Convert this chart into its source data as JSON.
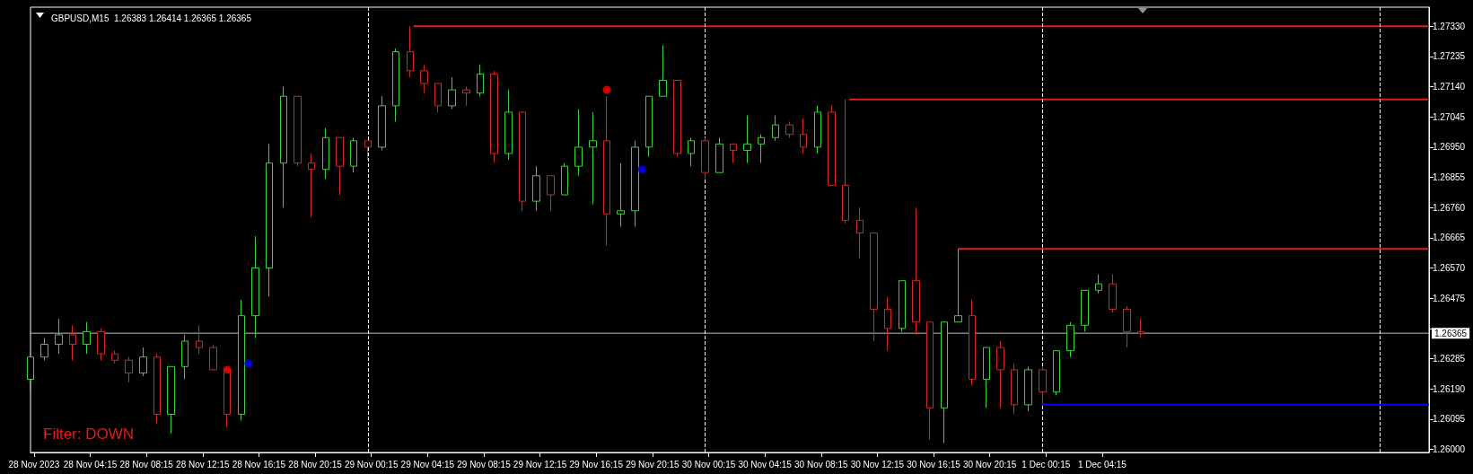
{
  "chart_data": {
    "type": "candlestick",
    "title": "GBPUSD,M15  1.26383 1.26414 1.26365 1.26365",
    "x": [
      "2023-11-28T00:00",
      "2023-11-28T01:00",
      "2023-11-28T02:00",
      "2023-11-28T03:00",
      "2023-11-28T04:00",
      "2023-11-28T05:00",
      "2023-11-28T06:00",
      "2023-11-28T07:00",
      "2023-11-28T08:00",
      "2023-11-28T09:00",
      "2023-11-28T10:00",
      "2023-11-28T11:00",
      "2023-11-28T12:00",
      "2023-11-28T13:00",
      "2023-11-28T14:00",
      "2023-11-28T15:00",
      "2023-11-28T16:00",
      "2023-11-28T17:00",
      "2023-11-28T18:00",
      "2023-11-28T19:00",
      "2023-11-28T20:00",
      "2023-11-28T21:00",
      "2023-11-28T22:00",
      "2023-11-28T23:00",
      "2023-11-29T00:00",
      "2023-11-29T01:00",
      "2023-11-29T02:00",
      "2023-11-29T03:00",
      "2023-11-29T04:00",
      "2023-11-29T05:00",
      "2023-11-29T06:00",
      "2023-11-29T07:00",
      "2023-11-29T08:00",
      "2023-11-29T09:00",
      "2023-11-29T10:00",
      "2023-11-29T11:00",
      "2023-11-29T12:00",
      "2023-11-29T13:00",
      "2023-11-29T14:00",
      "2023-11-29T15:00",
      "2023-11-29T16:00",
      "2023-11-29T17:00",
      "2023-11-29T18:00",
      "2023-11-29T19:00",
      "2023-11-29T20:00",
      "2023-11-29T21:00",
      "2023-11-29T22:00",
      "2023-11-29T23:00",
      "2023-11-30T00:00",
      "2023-11-30T01:00",
      "2023-11-30T02:00",
      "2023-11-30T03:00",
      "2023-11-30T04:00",
      "2023-11-30T05:00",
      "2023-11-30T06:00",
      "2023-11-30T07:00",
      "2023-11-30T08:00",
      "2023-11-30T09:00",
      "2023-11-30T10:00",
      "2023-11-30T11:00",
      "2023-11-30T12:00",
      "2023-11-30T13:00",
      "2023-11-30T14:00",
      "2023-11-30T15:00",
      "2023-11-30T16:00",
      "2023-11-30T17:00",
      "2023-11-30T18:00",
      "2023-11-30T19:00",
      "2023-11-30T20:00",
      "2023-11-30T21:00",
      "2023-11-30T22:00",
      "2023-11-30T23:00",
      "2023-12-01T00:00",
      "2023-12-01T01:00",
      "2023-12-01T02:00",
      "2023-12-01T03:00",
      "2023-12-01T04:00",
      "2023-12-01T05:00",
      "2023-12-01T06:00",
      "2023-12-01T07:00"
    ],
    "ohlc": [
      [
        1.2622,
        1.263,
        1.2618,
        1.2629
      ],
      [
        1.2629,
        1.2635,
        1.2628,
        1.2633
      ],
      [
        1.2633,
        1.2641,
        1.263,
        1.2636
      ],
      [
        1.2636,
        1.2639,
        1.2628,
        1.2633
      ],
      [
        1.2633,
        1.264,
        1.263,
        1.2637
      ],
      [
        1.2637,
        1.2638,
        1.2628,
        1.263
      ],
      [
        1.263,
        1.2631,
        1.2627,
        1.2628
      ],
      [
        1.2628,
        1.2629,
        1.2621,
        1.2624
      ],
      [
        1.2624,
        1.2632,
        1.2623,
        1.2629
      ],
      [
        1.2629,
        1.263,
        1.2608,
        1.2611
      ],
      [
        1.2611,
        1.2626,
        1.2605,
        1.2626
      ],
      [
        1.2626,
        1.2636,
        1.2622,
        1.2634
      ],
      [
        1.2634,
        1.2639,
        1.263,
        1.2632
      ],
      [
        1.2632,
        1.2633,
        1.2625,
        1.2625
      ],
      [
        1.2625,
        1.2626,
        1.2607,
        1.2611
      ],
      [
        1.2611,
        1.2647,
        1.2609,
        1.2642
      ],
      [
        1.2642,
        1.2667,
        1.2635,
        1.2657
      ],
      [
        1.2657,
        1.2696,
        1.2648,
        1.269
      ],
      [
        1.269,
        1.2714,
        1.2676,
        1.2711
      ],
      [
        1.2711,
        1.2711,
        1.2689,
        1.269
      ],
      [
        1.269,
        1.2693,
        1.2673,
        1.2688
      ],
      [
        1.2688,
        1.2701,
        1.2685,
        1.2698
      ],
      [
        1.2698,
        1.2698,
        1.268,
        1.2689
      ],
      [
        1.2689,
        1.2698,
        1.2687,
        1.2697
      ],
      [
        1.2697,
        1.2697,
        1.2691,
        1.2695
      ],
      [
        1.2695,
        1.2711,
        1.2694,
        1.2708
      ],
      [
        1.2708,
        1.2726,
        1.2703,
        1.2725
      ],
      [
        1.2725,
        1.2733,
        1.2717,
        1.2719
      ],
      [
        1.2719,
        1.2721,
        1.2712,
        1.2715
      ],
      [
        1.2715,
        1.2715,
        1.2706,
        1.2708
      ],
      [
        1.2708,
        1.2717,
        1.2707,
        1.2713
      ],
      [
        1.2713,
        1.2714,
        1.2708,
        1.2712
      ],
      [
        1.2712,
        1.2721,
        1.2711,
        1.2718
      ],
      [
        1.2718,
        1.2719,
        1.269,
        1.2693
      ],
      [
        1.2693,
        1.2713,
        1.2691,
        1.2706
      ],
      [
        1.2706,
        1.2706,
        1.2675,
        1.2678
      ],
      [
        1.2678,
        1.2689,
        1.2675,
        1.2686
      ],
      [
        1.2686,
        1.2686,
        1.2675,
        1.268
      ],
      [
        1.268,
        1.269,
        1.268,
        1.2689
      ],
      [
        1.2689,
        1.2707,
        1.2686,
        1.2695
      ],
      [
        1.2695,
        1.2706,
        1.2677,
        1.2697
      ],
      [
        1.2697,
        1.2711,
        1.2664,
        1.2674
      ],
      [
        1.2674,
        1.269,
        1.267,
        1.2675
      ],
      [
        1.2675,
        1.2697,
        1.267,
        1.2695
      ],
      [
        1.2695,
        1.2711,
        1.2692,
        1.2711
      ],
      [
        1.2711,
        1.2727,
        1.2711,
        1.2716
      ],
      [
        1.2716,
        1.2716,
        1.2692,
        1.2693
      ],
      [
        1.2693,
        1.2698,
        1.2689,
        1.2697
      ],
      [
        1.2697,
        1.2698,
        1.2685,
        1.2687
      ],
      [
        1.2687,
        1.2698,
        1.2687,
        1.2696
      ],
      [
        1.2696,
        1.2696,
        1.269,
        1.2694
      ],
      [
        1.2694,
        1.2705,
        1.269,
        1.2696
      ],
      [
        1.2696,
        1.2699,
        1.269,
        1.2698
      ],
      [
        1.2698,
        1.2705,
        1.2697,
        1.2702
      ],
      [
        1.2702,
        1.2703,
        1.2698,
        1.2699
      ],
      [
        1.2699,
        1.2704,
        1.2693,
        1.2695
      ],
      [
        1.2695,
        1.2708,
        1.2693,
        1.2706
      ],
      [
        1.2706,
        1.2708,
        1.2683,
        1.2683
      ],
      [
        1.2683,
        1.271,
        1.2671,
        1.2672
      ],
      [
        1.2672,
        1.2676,
        1.266,
        1.2668
      ],
      [
        1.2668,
        1.2668,
        1.2634,
        1.2644
      ],
      [
        1.2644,
        1.2648,
        1.2631,
        1.2638
      ],
      [
        1.2638,
        1.2653,
        1.2637,
        1.2653
      ],
      [
        1.2653,
        1.2676,
        1.2636,
        1.264
      ],
      [
        1.264,
        1.264,
        1.2603,
        1.2613
      ],
      [
        1.2613,
        1.264,
        1.2602,
        1.264
      ],
      [
        1.264,
        1.2663,
        1.264,
        1.2642
      ],
      [
        1.2642,
        1.2647,
        1.262,
        1.2622
      ],
      [
        1.2622,
        1.2632,
        1.2613,
        1.2632
      ],
      [
        1.2632,
        1.2634,
        1.2613,
        1.2625
      ],
      [
        1.2625,
        1.2627,
        1.2611,
        1.2614
      ],
      [
        1.2614,
        1.2626,
        1.2612,
        1.2625
      ],
      [
        1.2625,
        1.2626,
        1.2614,
        1.2618
      ],
      [
        1.2618,
        1.2631,
        1.2617,
        1.2631
      ],
      [
        1.2631,
        1.264,
        1.2629,
        1.2639
      ],
      [
        1.2639,
        1.265,
        1.2637,
        1.265
      ],
      [
        1.265,
        1.2655,
        1.2649,
        1.2652
      ],
      [
        1.2652,
        1.2655,
        1.2643,
        1.2644
      ],
      [
        1.2644,
        1.2645,
        1.2632,
        1.2637
      ],
      [
        1.2637,
        1.2641,
        1.2635,
        1.26365
      ]
    ],
    "series": [
      {
        "type": "line",
        "color": "#e02020",
        "marker": "none",
        "x": [
          "2023-11-29T03:15",
          "2023-12-02T03:30"
        ],
        "values": [
          1.2733,
          1.2733
        ]
      },
      {
        "type": "line",
        "color": "#e02020",
        "marker": "none",
        "x": [
          "2023-11-30T10:15",
          "2023-12-02T03:30"
        ],
        "values": [
          1.271,
          1.271
        ]
      },
      {
        "type": "line",
        "color": "#e02020",
        "marker": "none",
        "x": [
          "2023-11-30T18:00",
          "2023-12-02T03:30"
        ],
        "values": [
          1.2663,
          1.2663
        ]
      },
      {
        "type": "line",
        "color": "#0000ff",
        "marker": "none",
        "x": [
          "2023-12-01T00:00",
          "2023-12-02T03:30"
        ],
        "values": [
          1.2614,
          1.2614
        ]
      },
      {
        "type": "scatter",
        "color": "#ff0000",
        "marker": "circle",
        "x": [
          "2023-11-28T14:00",
          "2023-11-29T17:00"
        ],
        "values": [
          1.2625,
          1.2713
        ]
      },
      {
        "type": "scatter",
        "color": "#0000ff",
        "marker": "circle",
        "x": [
          "2023-11-28T15:30",
          "2023-11-29T19:30"
        ],
        "values": [
          1.2627,
          1.2688
        ]
      }
    ],
    "xlim": [
      "2023-11-28T00:00",
      "2023-12-02T03:30"
    ],
    "xticks": [
      {
        "value": "2023-11-28T00:15",
        "label": "28 Nov 2023"
      },
      {
        "value": "2023-11-28T04:15",
        "label": "28 Nov 04:15"
      },
      {
        "value": "2023-11-28T08:15",
        "label": "28 Nov 08:15"
      },
      {
        "value": "2023-11-28T12:15",
        "label": "28 Nov 12:15"
      },
      {
        "value": "2023-11-28T16:15",
        "label": "28 Nov 16:15"
      },
      {
        "value": "2023-11-28T20:15",
        "label": "28 Nov 20:15"
      },
      {
        "value": "2023-11-29T00:15",
        "label": "29 Nov 00:15"
      },
      {
        "value": "2023-11-29T04:15",
        "label": "29 Nov 04:15"
      },
      {
        "value": "2023-11-29T08:15",
        "label": "29 Nov 08:15"
      },
      {
        "value": "2023-11-29T12:15",
        "label": "29 Nov 12:15"
      },
      {
        "value": "2023-11-29T16:15",
        "label": "29 Nov 16:15"
      },
      {
        "value": "2023-11-29T20:15",
        "label": "29 Nov 20:15"
      },
      {
        "value": "2023-11-30T00:15",
        "label": "30 Nov 00:15"
      },
      {
        "value": "2023-11-30T04:15",
        "label": "30 Nov 04:15"
      },
      {
        "value": "2023-11-30T08:15",
        "label": "30 Nov 08:15"
      },
      {
        "value": "2023-11-30T12:15",
        "label": "30 Nov 12:15"
      },
      {
        "value": "2023-11-30T16:15",
        "label": "30 Nov 16:15"
      },
      {
        "value": "2023-11-30T20:15",
        "label": "30 Nov 20:15"
      },
      {
        "value": "2023-12-01T00:15",
        "label": "1 Dec 00:15"
      },
      {
        "value": "2023-12-01T04:15",
        "label": "1 Dec 04:15"
      }
    ],
    "ylim": [
      1.2599,
      1.2739
    ],
    "yticks": [
      {
        "value": 1.26,
        "label": "1.26000"
      },
      1.26095,
      {
        "value": 1.2619,
        "label": "1.26190"
      },
      1.26285,
      {
        "value": 1.2638,
        "label": null
      },
      1.26475,
      {
        "value": 1.2657,
        "label": "1.26570"
      },
      1.26665,
      {
        "value": 1.2676,
        "label": "1.26760"
      },
      1.26855,
      {
        "value": 1.2695,
        "label": "1.26950"
      },
      1.27045,
      {
        "value": 1.2714,
        "label": "1.27140"
      },
      1.27235,
      {
        "value": 1.2733,
        "label": "1.27330"
      }
    ],
    "ref_lines": [
      {
        "axis": "y",
        "value": 1.26365,
        "label": "1.26365",
        "color": "#c0c0c0",
        "line_style": "solid"
      },
      {
        "axis": "x",
        "value": "2023-11-29T00:00",
        "color": "#ffffff",
        "line_style": "dashed"
      },
      {
        "axis": "x",
        "value": "2023-11-30T00:00",
        "color": "#ffffff",
        "line_style": "dashed"
      },
      {
        "axis": "x",
        "value": "2023-12-01T00:00",
        "color": "#ffffff",
        "line_style": "dashed"
      },
      {
        "axis": "x",
        "value": "2023-12-02T00:00",
        "color": "#ffffff",
        "line_style": "dashed"
      }
    ],
    "annotations": [
      "Filter: DOWN"
    ]
  }
}
